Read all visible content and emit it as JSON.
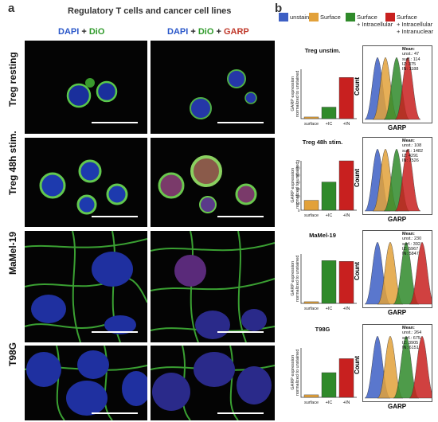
{
  "panel_a": {
    "letter": "a",
    "title": "Regulatory T cells and cancer cell lines",
    "col1": {
      "dapi": "DAPI",
      "plus1": "+",
      "dio": "DiO"
    },
    "col2": {
      "dapi": "DAPI",
      "plus1": "+",
      "dio": "DiO",
      "plus2": "+",
      "garp": "GARP"
    },
    "rows": [
      "Treg resting",
      "Treg 48h stim.",
      "MaMel-19",
      "T98G"
    ]
  },
  "panel_b": {
    "letter": "b",
    "legend": [
      {
        "label": "unstained",
        "color": "#3d5fc4"
      },
      {
        "label": "Surface",
        "color": "#e2a13a"
      },
      {
        "label": "Surface\n+ Intracellular",
        "color": "#2f8a2a"
      },
      {
        "label": "Surface\n+ Intracellular\n+ Intranuclear",
        "color": "#c8201f"
      }
    ],
    "ylabel": "GARP expression\nnormalized to unstained",
    "count_label": "Count",
    "garp_label": "GARP",
    "mean_title": "Mean:",
    "colors": {
      "surface": "#e2a13a",
      "ic": "#2f8a2a",
      "in": "#c8201f",
      "unst": "#3d5fc4"
    }
  },
  "chart_data": [
    {
      "type": "bar",
      "title": "Treg unstim.",
      "categories": [
        "surface",
        "+IC",
        "+IN"
      ],
      "values": [
        1,
        7,
        25
      ],
      "ylim": [
        0,
        30
      ],
      "means": [
        {
          "k": "unst.:",
          "v": "47"
        },
        {
          "k": "surf.:",
          "v": "114"
        },
        {
          "k": "IZ:",
          "v": "375"
        },
        {
          "k": "IN:",
          "v": "1188"
        }
      ]
    },
    {
      "type": "bar",
      "title": "Treg 48h stim.",
      "categories": [
        "surface",
        "+IC",
        "+IN"
      ],
      "values": [
        14,
        40,
        70
      ],
      "ylim": [
        0,
        70
      ],
      "yticks": [
        "0",
        "10",
        "20",
        "30",
        "40",
        "50",
        "60",
        "70"
      ],
      "means": [
        {
          "k": "unst.:",
          "v": "108"
        },
        {
          "k": "surf.:",
          "v": "1482"
        },
        {
          "k": "IZ:",
          "v": "4291"
        },
        {
          "k": "IN:",
          "v": "7526"
        }
      ]
    },
    {
      "type": "bar",
      "title": "MaMel-19",
      "categories": [
        "surface",
        "+IC",
        "+IN"
      ],
      "values": [
        1,
        26,
        25.5
      ],
      "ylim": [
        0,
        30
      ],
      "means": [
        {
          "k": "unst.:",
          "v": "230"
        },
        {
          "k": "surf.:",
          "v": "392"
        },
        {
          "k": "IZ:",
          "v": "5967"
        },
        {
          "k": "IN:",
          "v": "5847"
        }
      ]
    },
    {
      "type": "bar",
      "title": "T98G",
      "categories": [
        "surface",
        "+IC",
        "+IN"
      ],
      "values": [
        1.5,
        15,
        23.5
      ],
      "ylim": [
        0,
        30
      ],
      "means": [
        {
          "k": "unst.:",
          "v": "264"
        },
        {
          "k": "surf.:",
          "v": "675"
        },
        {
          "k": "IZ:",
          "v": "3905"
        },
        {
          "k": "IN:",
          "v": "6151"
        }
      ]
    }
  ]
}
